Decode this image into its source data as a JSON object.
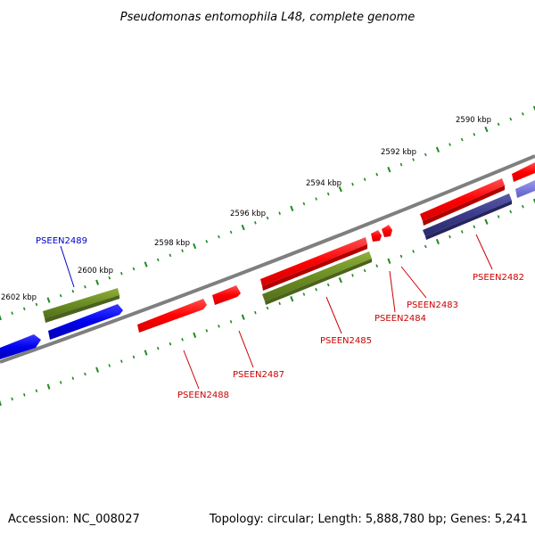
{
  "title": "Pseudomonas entomophila L48, complete genome",
  "footer": {
    "accession": "Accession: NC_008027",
    "summary": "Topology: circular; Length: 5,888,780 bp; Genes: 5,241"
  },
  "colors": {
    "backbone": "#7f7f7f",
    "tick": "#1f8a1f",
    "red": "#ff0000",
    "olive": "#6b8e23",
    "blue": "#0000ee",
    "navy": "#3b3b8c",
    "lavender": "#7b7bdb",
    "label_red": "#cc0000",
    "label_blue": "#0000cc"
  },
  "scale_labels": [
    "2590 kbp",
    "2592 kbp",
    "2594 kbp",
    "2596 kbp",
    "2598 kbp",
    "2600 kbp",
    "2602 kbp"
  ],
  "gene_labels": [
    {
      "name": "PSEEN2482",
      "color": "red"
    },
    {
      "name": "PSEEN2483",
      "color": "red"
    },
    {
      "name": "PSEEN2484",
      "color": "red"
    },
    {
      "name": "PSEEN2485",
      "color": "red"
    },
    {
      "name": "PSEEN2487",
      "color": "red"
    },
    {
      "name": "PSEEN2488",
      "color": "red"
    },
    {
      "name": "PSEEN2489",
      "color": "blue"
    }
  ]
}
